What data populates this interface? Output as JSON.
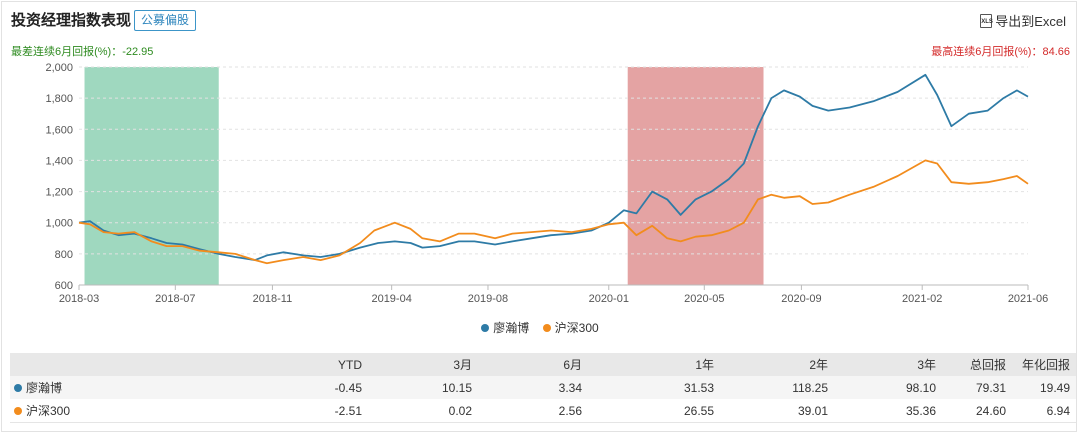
{
  "header": {
    "title": "投资经理指数表现",
    "badge": "公募偏股",
    "export_label": "导出到Excel",
    "export_icon": "excel-export-icon"
  },
  "stats": {
    "worst": "最差连续6月回报(%)：-22.95",
    "best": "最高连续6月回报(%)：84.66"
  },
  "colors": {
    "manager": "#2e7ba6",
    "index": "#f28c1d",
    "worst_band": "#9fd8bf",
    "best_band": "#e4a3a3"
  },
  "chart_data": {
    "type": "line",
    "ylim": [
      600,
      2000
    ],
    "yticks": [
      "600",
      "800",
      "1,000",
      "1,200",
      "1,400",
      "1,600",
      "1,800",
      "2,000"
    ],
    "xlim": [
      "2018-03-01",
      "2021-06-15"
    ],
    "xticks": [
      {
        "date": "2018-03-01",
        "label": "2018-03"
      },
      {
        "date": "2018-07-01",
        "label": "2018-07"
      },
      {
        "date": "2018-11-01",
        "label": "2018-11"
      },
      {
        "date": "2019-04-01",
        "label": "2019-04"
      },
      {
        "date": "2019-08-01",
        "label": "2019-08"
      },
      {
        "date": "2020-01-01",
        "label": "2020-01"
      },
      {
        "date": "2020-05-01",
        "label": "2020-05"
      },
      {
        "date": "2020-09-01",
        "label": "2020-09"
      },
      {
        "date": "2021-02-01",
        "label": "2021-02"
      },
      {
        "date": "2021-06-15",
        "label": "2021-06"
      }
    ],
    "bands": [
      {
        "start": "2018-03-08",
        "end": "2018-08-25",
        "kind": "worst"
      },
      {
        "start": "2020-01-25",
        "end": "2020-07-15",
        "kind": "best"
      }
    ],
    "grid": true,
    "legend_placement": "bottom",
    "series": [
      {
        "name": "廖瀚博",
        "points": [
          [
            "2018-03-01",
            1000
          ],
          [
            "2018-03-15",
            1010
          ],
          [
            "2018-04-01",
            950
          ],
          [
            "2018-04-20",
            920
          ],
          [
            "2018-05-10",
            930
          ],
          [
            "2018-06-01",
            900
          ],
          [
            "2018-06-20",
            870
          ],
          [
            "2018-07-10",
            860
          ],
          [
            "2018-08-01",
            830
          ],
          [
            "2018-08-25",
            800
          ],
          [
            "2018-09-15",
            780
          ],
          [
            "2018-10-10",
            760
          ],
          [
            "2018-10-25",
            790
          ],
          [
            "2018-11-15",
            810
          ],
          [
            "2018-12-10",
            790
          ],
          [
            "2019-01-01",
            780
          ],
          [
            "2019-01-25",
            800
          ],
          [
            "2019-02-20",
            840
          ],
          [
            "2019-03-15",
            870
          ],
          [
            "2019-04-05",
            880
          ],
          [
            "2019-04-25",
            870
          ],
          [
            "2019-05-10",
            840
          ],
          [
            "2019-06-01",
            850
          ],
          [
            "2019-06-25",
            880
          ],
          [
            "2019-07-15",
            880
          ],
          [
            "2019-08-10",
            860
          ],
          [
            "2019-09-01",
            880
          ],
          [
            "2019-09-25",
            900
          ],
          [
            "2019-10-20",
            920
          ],
          [
            "2019-11-15",
            930
          ],
          [
            "2019-12-10",
            950
          ],
          [
            "2020-01-01",
            1000
          ],
          [
            "2020-01-20",
            1080
          ],
          [
            "2020-02-05",
            1060
          ],
          [
            "2020-02-25",
            1200
          ],
          [
            "2020-03-15",
            1150
          ],
          [
            "2020-04-01",
            1050
          ],
          [
            "2020-04-20",
            1150
          ],
          [
            "2020-05-10",
            1200
          ],
          [
            "2020-06-01",
            1280
          ],
          [
            "2020-06-20",
            1380
          ],
          [
            "2020-07-08",
            1620
          ],
          [
            "2020-07-25",
            1800
          ],
          [
            "2020-08-10",
            1850
          ],
          [
            "2020-08-30",
            1810
          ],
          [
            "2020-09-15",
            1750
          ],
          [
            "2020-10-05",
            1720
          ],
          [
            "2020-11-01",
            1740
          ],
          [
            "2020-12-01",
            1780
          ],
          [
            "2021-01-01",
            1840
          ],
          [
            "2021-02-05",
            1950
          ],
          [
            "2021-02-20",
            1820
          ],
          [
            "2021-03-10",
            1620
          ],
          [
            "2021-04-01",
            1700
          ],
          [
            "2021-04-25",
            1720
          ],
          [
            "2021-05-15",
            1800
          ],
          [
            "2021-06-01",
            1850
          ],
          [
            "2021-06-15",
            1810
          ]
        ]
      },
      {
        "name": "沪深300",
        "points": [
          [
            "2018-03-01",
            1000
          ],
          [
            "2018-03-15",
            990
          ],
          [
            "2018-04-01",
            940
          ],
          [
            "2018-04-20",
            930
          ],
          [
            "2018-05-10",
            940
          ],
          [
            "2018-06-01",
            880
          ],
          [
            "2018-06-20",
            850
          ],
          [
            "2018-07-10",
            850
          ],
          [
            "2018-08-01",
            820
          ],
          [
            "2018-08-25",
            810
          ],
          [
            "2018-09-15",
            800
          ],
          [
            "2018-10-10",
            760
          ],
          [
            "2018-10-25",
            740
          ],
          [
            "2018-11-15",
            760
          ],
          [
            "2018-12-10",
            780
          ],
          [
            "2019-01-01",
            760
          ],
          [
            "2019-01-25",
            790
          ],
          [
            "2019-02-20",
            870
          ],
          [
            "2019-03-10",
            950
          ],
          [
            "2019-04-05",
            1000
          ],
          [
            "2019-04-25",
            960
          ],
          [
            "2019-05-10",
            900
          ],
          [
            "2019-06-01",
            880
          ],
          [
            "2019-06-25",
            930
          ],
          [
            "2019-07-15",
            930
          ],
          [
            "2019-08-10",
            900
          ],
          [
            "2019-09-01",
            930
          ],
          [
            "2019-09-25",
            940
          ],
          [
            "2019-10-20",
            950
          ],
          [
            "2019-11-15",
            940
          ],
          [
            "2019-12-10",
            960
          ],
          [
            "2020-01-01",
            990
          ],
          [
            "2020-01-20",
            1000
          ],
          [
            "2020-02-05",
            920
          ],
          [
            "2020-02-25",
            980
          ],
          [
            "2020-03-15",
            900
          ],
          [
            "2020-04-01",
            880
          ],
          [
            "2020-04-20",
            910
          ],
          [
            "2020-05-10",
            920
          ],
          [
            "2020-06-01",
            950
          ],
          [
            "2020-06-20",
            1000
          ],
          [
            "2020-07-08",
            1150
          ],
          [
            "2020-07-25",
            1180
          ],
          [
            "2020-08-10",
            1160
          ],
          [
            "2020-08-30",
            1170
          ],
          [
            "2020-09-15",
            1120
          ],
          [
            "2020-10-05",
            1130
          ],
          [
            "2020-11-01",
            1180
          ],
          [
            "2020-12-01",
            1230
          ],
          [
            "2021-01-01",
            1300
          ],
          [
            "2021-02-05",
            1400
          ],
          [
            "2021-02-20",
            1380
          ],
          [
            "2021-03-10",
            1260
          ],
          [
            "2021-04-01",
            1250
          ],
          [
            "2021-04-25",
            1260
          ],
          [
            "2021-05-15",
            1280
          ],
          [
            "2021-06-01",
            1300
          ],
          [
            "2021-06-15",
            1250
          ]
        ]
      }
    ]
  },
  "table": {
    "columns": [
      "YTD",
      "3月",
      "6月",
      "1年",
      "2年",
      "3年",
      "总回报",
      "年化回报"
    ],
    "rows": [
      {
        "name": "廖瀚博",
        "color": "#2e7ba6",
        "values": [
          "-0.45",
          "10.15",
          "3.34",
          "31.53",
          "118.25",
          "98.10",
          "79.31",
          "19.49"
        ]
      },
      {
        "name": "沪深300",
        "color": "#f28c1d",
        "values": [
          "-2.51",
          "0.02",
          "2.56",
          "26.55",
          "39.01",
          "35.36",
          "24.60",
          "6.94"
        ]
      }
    ]
  }
}
